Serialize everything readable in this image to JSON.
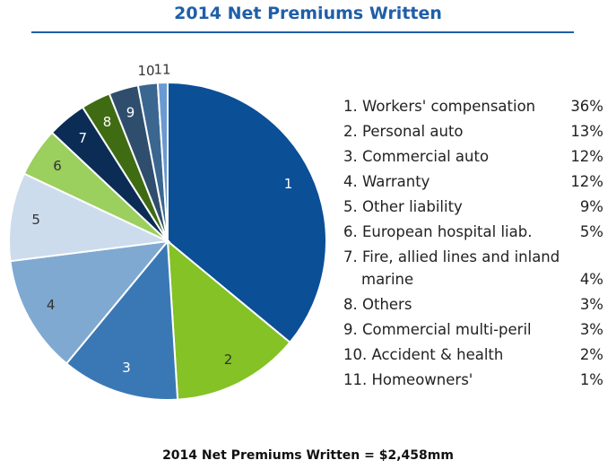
{
  "chart_data": {
    "type": "pie",
    "title": "2014 Net Premiums Written",
    "footnote": "2014 Net Premiums Written = $2,458mm",
    "categories": [
      "1. Workers' compensation",
      "2. Personal auto",
      "3. Commercial auto",
      "4. Warranty",
      "5. Other liability",
      "6. European hospital liab.",
      "7. Fire, allied lines and inland marine",
      "8. Others",
      "9. Commercial multi-peril",
      "10. Accident & health",
      "11. Homeowners'"
    ],
    "slice_labels": [
      "1",
      "2",
      "3",
      "4",
      "5",
      "6",
      "7",
      "8",
      "9",
      "10",
      "11"
    ],
    "values": [
      36,
      13,
      12,
      12,
      9,
      5,
      4,
      3,
      3,
      2,
      1
    ],
    "value_labels": [
      "36%",
      "13%",
      "12%",
      "12%",
      "9%",
      "5%",
      "4%",
      "3%",
      "3%",
      "2%",
      "1%"
    ],
    "colors": [
      "#0b4f96",
      "#84c225",
      "#3a78b5",
      "#80a9d1",
      "#cddcec",
      "#9bcf5e",
      "#0b2c55",
      "#3f6b12",
      "#2f4e6e",
      "#3b6690",
      "#6a9ad0"
    ]
  }
}
